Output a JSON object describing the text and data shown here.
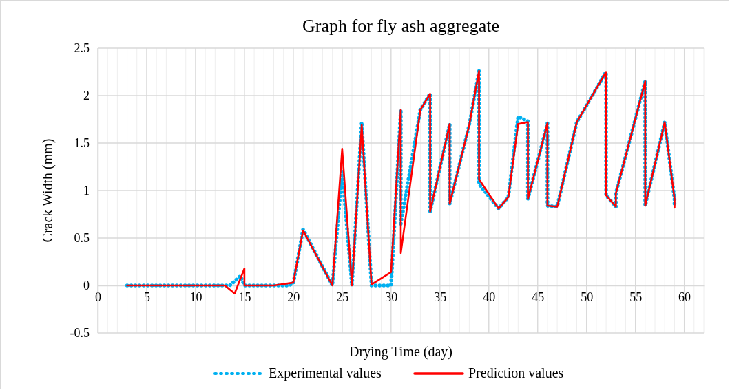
{
  "chart_data": {
    "type": "line",
    "title": "Graph for fly ash aggregate",
    "xlabel": "Drying Time (day)",
    "ylabel": "Crack Width (mm)",
    "xlim": [
      0,
      62
    ],
    "xticks": [
      0,
      5,
      10,
      15,
      20,
      25,
      30,
      35,
      40,
      45,
      50,
      55,
      60
    ],
    "ylim": [
      -0.5,
      2.5
    ],
    "yticks": [
      -0.5,
      0,
      0.5,
      1,
      1.5,
      2,
      2.5
    ],
    "grid": true,
    "legend": "bottom",
    "marker": "none",
    "series": [
      {
        "name": "Experimental values",
        "color": "#00b0f0",
        "line_style": "dotted",
        "x": [
          3,
          13,
          13.5,
          14.6,
          15,
          18,
          19.5,
          20,
          21,
          24,
          25,
          26,
          27,
          28,
          30,
          31,
          31,
          33,
          34,
          34,
          36,
          36,
          38,
          39,
          39,
          41,
          42,
          43,
          44,
          44,
          46,
          46,
          47,
          49,
          52,
          52,
          53,
          53,
          56,
          56,
          58,
          59,
          59
        ],
        "values": [
          0,
          0,
          0,
          0.1,
          0,
          0,
          0,
          0.02,
          0.59,
          0,
          1.2,
          0,
          1.72,
          0,
          0,
          1.85,
          0.65,
          1.85,
          2.02,
          0.78,
          1.7,
          0.86,
          1.69,
          2.26,
          1.07,
          0.81,
          0.93,
          1.78,
          1.73,
          0.91,
          1.71,
          0.84,
          0.83,
          1.72,
          2.25,
          0.95,
          0.83,
          0.97,
          2.15,
          0.84,
          1.72,
          0.91,
          0.82
        ]
      },
      {
        "name": "Prediction values",
        "color": "#ff0000",
        "line_style": "solid",
        "x": [
          3,
          13,
          14,
          15,
          15,
          18,
          20,
          21,
          24,
          25,
          26,
          27,
          28,
          30,
          31,
          31,
          33,
          34,
          34,
          36,
          36,
          38,
          39,
          39,
          41,
          42,
          43,
          44,
          44,
          46,
          46,
          47,
          49,
          52,
          52,
          53,
          53,
          56,
          56,
          58,
          59,
          59
        ],
        "values": [
          0,
          0,
          -0.085,
          0.18,
          0,
          0,
          0.03,
          0.58,
          0,
          1.44,
          0,
          1.69,
          0.01,
          0.14,
          1.85,
          0.34,
          1.85,
          2.02,
          0.78,
          1.7,
          0.86,
          1.69,
          2.26,
          1.12,
          0.81,
          0.93,
          1.7,
          1.72,
          0.91,
          1.71,
          0.84,
          0.83,
          1.72,
          2.25,
          0.95,
          0.83,
          0.97,
          2.15,
          0.84,
          1.72,
          0.91,
          0.82
        ]
      }
    ]
  }
}
